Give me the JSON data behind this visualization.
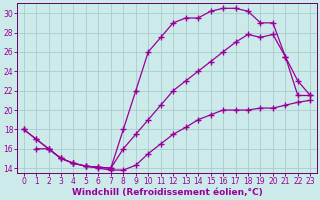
{
  "xlabel": "Windchill (Refroidissement éolien,°C)",
  "bg_color": "#cceaea",
  "grid_color": "#aacccc",
  "line_color": "#990099",
  "spine_color": "#660066",
  "xlim": [
    -0.5,
    23.5
  ],
  "ylim": [
    13.5,
    31.0
  ],
  "xticks": [
    0,
    1,
    2,
    3,
    4,
    5,
    6,
    7,
    8,
    9,
    10,
    11,
    12,
    13,
    14,
    15,
    16,
    17,
    18,
    19,
    20,
    21,
    22,
    23
  ],
  "yticks": [
    14,
    16,
    18,
    20,
    22,
    24,
    26,
    28,
    30
  ],
  "line1_x": [
    0,
    1,
    2,
    3,
    4,
    5,
    6,
    7,
    8,
    9,
    10,
    11,
    12,
    13,
    14,
    15,
    16,
    17,
    18,
    19,
    20,
    21,
    22,
    23
  ],
  "line1_y": [
    18,
    17,
    16,
    15,
    14.5,
    14.2,
    14.1,
    14,
    18,
    22,
    26,
    27.5,
    29,
    29.5,
    29.5,
    30.2,
    30.5,
    30.5,
    30.2,
    29.0,
    29.0,
    25.5,
    21.5,
    21.5
  ],
  "line2_x": [
    0,
    1,
    2,
    3,
    4,
    5,
    6,
    7,
    8,
    9,
    10,
    11,
    12,
    13,
    14,
    15,
    16,
    17,
    18,
    19,
    20,
    21,
    22,
    23
  ],
  "line2_y": [
    18,
    17,
    16,
    15,
    14.5,
    14.2,
    14.1,
    14,
    16,
    17.5,
    19,
    20.5,
    22,
    23,
    24,
    25,
    26,
    27,
    27.8,
    27.5,
    27.8,
    25.5,
    23.0,
    21.5
  ],
  "line3_x": [
    1,
    2,
    3,
    4,
    5,
    6,
    7,
    8,
    9,
    10,
    11,
    12,
    13,
    14,
    15,
    16,
    17,
    18,
    19,
    20,
    21,
    22,
    23
  ],
  "line3_y": [
    16,
    16,
    15,
    14.5,
    14.2,
    14,
    13.8,
    13.8,
    14.3,
    15.5,
    16.5,
    17.5,
    18.2,
    19.0,
    19.5,
    20.0,
    20.0,
    20.0,
    20.2,
    20.2,
    20.5,
    20.8,
    21.0
  ],
  "marker": "+",
  "markersize": 4,
  "markeredgewidth": 1.0,
  "linewidth": 0.9,
  "tick_fontsize": 5.5,
  "label_fontsize": 6.5
}
